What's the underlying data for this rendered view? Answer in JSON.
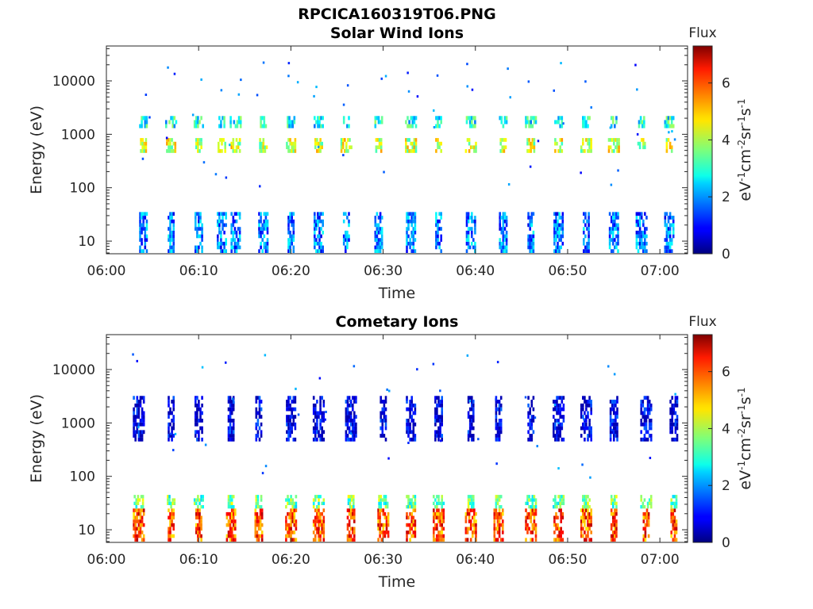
{
  "figure": {
    "filename": "RPCICA160319T06.PNG"
  },
  "chart_data": [
    {
      "type": "heatmap",
      "title": "Solar Wind Ions",
      "xlabel": "Time",
      "ylabel": "Energy (eV)",
      "x_ticks": [
        "06:00",
        "06:10",
        "06:20",
        "06:30",
        "06:40",
        "06:50",
        "07:00"
      ],
      "x_tick_minutes": [
        0,
        10,
        20,
        30,
        40,
        50,
        60
      ],
      "xlim_minutes": [
        0,
        63
      ],
      "yscale": "log",
      "ylim": [
        5.8,
        45000
      ],
      "y_ticks": [
        10,
        100,
        1000,
        10000
      ],
      "y_tick_labels": [
        "10",
        "100",
        "1000",
        "10000"
      ],
      "colorbar": {
        "label": "Flux",
        "units": "eV-1cm-2sr-1s-1",
        "range": [
          0,
          7.3
        ],
        "ticks": [
          0,
          2,
          4,
          6
        ],
        "tick_labels": [
          "0",
          "2",
          "4",
          "6"
        ]
      },
      "bursts_minutes": [
        4.0,
        7.0,
        10.0,
        12.5,
        14.0,
        17.0,
        20.0,
        23.0,
        26.0,
        29.5,
        33.0,
        36.0,
        39.5,
        43.0,
        46.0,
        49.0,
        52.0,
        55.0,
        58.0,
        61.0
      ],
      "bands": [
        {
          "energy_range": [
            450,
            850
          ],
          "flux": 4.2
        },
        {
          "energy_range": [
            1300,
            2200
          ],
          "flux": 2.8
        },
        {
          "energy_range": [
            6,
            35
          ],
          "flux": 1.8
        }
      ]
    },
    {
      "type": "heatmap",
      "title": "Cometary Ions",
      "xlabel": "Time",
      "ylabel": "Energy (eV)",
      "x_ticks": [
        "06:00",
        "06:10",
        "06:20",
        "06:30",
        "06:40",
        "06:50",
        "07:00"
      ],
      "x_tick_minutes": [
        0,
        10,
        20,
        30,
        40,
        50,
        60
      ],
      "xlim_minutes": [
        0,
        63
      ],
      "yscale": "log",
      "ylim": [
        5.8,
        45000
      ],
      "y_ticks": [
        10,
        100,
        1000,
        10000
      ],
      "y_tick_labels": [
        "10",
        "100",
        "1000",
        "10000"
      ],
      "colorbar": {
        "label": "Flux",
        "units": "eV-1cm-2sr-1s-1",
        "range": [
          0,
          7.3
        ],
        "ticks": [
          0,
          2,
          4,
          6
        ],
        "tick_labels": [
          "0",
          "2",
          "4",
          "6"
        ]
      },
      "bursts_minutes": [
        3.5,
        7.0,
        10.0,
        13.5,
        16.5,
        20.0,
        23.0,
        26.5,
        30.0,
        33.0,
        36.0,
        39.5,
        42.5,
        46.0,
        49.0,
        52.0,
        55.0,
        58.5,
        61.5
      ],
      "bands": [
        {
          "energy_range": [
            6,
            25
          ],
          "flux": 5.8
        },
        {
          "energy_range": [
            25,
            45
          ],
          "flux": 3.5
        },
        {
          "energy_range": [
            450,
            3200
          ],
          "flux": 0.6
        }
      ]
    }
  ]
}
